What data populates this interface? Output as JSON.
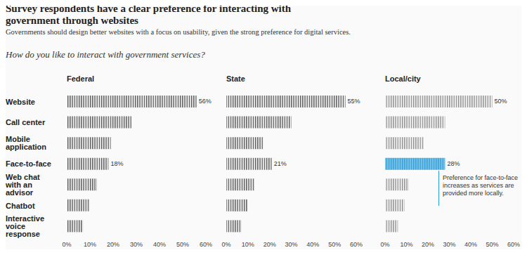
{
  "title": "Survey respondents have a clear preference for interacting with government through websites",
  "subtitle": "Governments should design better websites with a focus on usability, given the strong preference for digital services.",
  "question": "How do you like to interact with government services?",
  "chart_data": [
    {
      "type": "bar",
      "orientation": "horizontal",
      "title": "Federal",
      "categories": [
        "Website",
        "Call center",
        "Mobile application",
        "Face-to-face",
        "Web chat with an advisor",
        "Chatbot",
        "Interactive voice response"
      ],
      "values": [
        56,
        28,
        19,
        18,
        13,
        10,
        7
      ],
      "value_labels": [
        "56%",
        null,
        null,
        "18%",
        null,
        null,
        null
      ],
      "data_labels": true,
      "colors": [
        "#555555",
        "#555555",
        "#555555",
        "#555555",
        "#555555",
        "#555555",
        "#555555"
      ],
      "xlim": [
        0,
        60
      ],
      "xticks": [
        {
          "value": 0,
          "label": "0%"
        },
        {
          "value": 10,
          "label": "10%"
        },
        {
          "value": 20,
          "label": "20%"
        },
        {
          "value": 30,
          "label": "30%"
        },
        {
          "value": 40,
          "label": "40%"
        },
        {
          "value": 50,
          "label": "50%"
        },
        {
          "value": 60,
          "label": "60%"
        }
      ],
      "grid": false
    },
    {
      "type": "bar",
      "orientation": "horizontal",
      "title": "State",
      "categories": [
        "Website",
        "Call center",
        "Mobile application",
        "Face-to-face",
        "Web chat with an advisor",
        "Chatbot",
        "Interactive voice response"
      ],
      "values": [
        55,
        30,
        17,
        21,
        13,
        10,
        7
      ],
      "value_labels": [
        "55%",
        null,
        null,
        "21%",
        null,
        null,
        null
      ],
      "data_labels": true,
      "tick_labels": "x",
      "colors": [
        "#555555",
        "#555555",
        "#555555",
        "#555555",
        "#555555",
        "#555555",
        "#555555"
      ],
      "xlim": [
        0,
        60
      ],
      "xticks": [
        {
          "value": 0,
          "label": "0%"
        },
        {
          "value": 10,
          "label": "10%"
        },
        {
          "value": 20,
          "label": "20%"
        },
        {
          "value": 30,
          "label": "30%"
        },
        {
          "value": 40,
          "label": "40%"
        },
        {
          "value": 50,
          "label": "50%"
        },
        {
          "value": 60,
          "label": "60%"
        }
      ],
      "grid": false
    },
    {
      "type": "bar",
      "orientation": "horizontal",
      "title": "Local/city",
      "categories": [
        "Website",
        "Call center",
        "Mobile application",
        "Face-to-face",
        "Web chat with an advisor",
        "Chatbot",
        "Interactive voice response"
      ],
      "values": [
        50,
        28,
        18,
        28,
        11,
        9,
        6
      ],
      "value_labels": [
        "50%",
        null,
        null,
        "28%",
        null,
        null,
        null
      ],
      "data_labels": true,
      "tick_labels": "x",
      "colors": [
        "#8a8a8a",
        "#8a8a8a",
        "#8a8a8a",
        "#2b9fd9",
        "#8a8a8a",
        "#8a8a8a",
        "#8a8a8a"
      ],
      "xlim": [
        0,
        60
      ],
      "xticks": [
        {
          "value": 0,
          "label": "0%"
        },
        {
          "value": 10,
          "label": "10%"
        },
        {
          "value": 20,
          "label": "20%"
        },
        {
          "value": 30,
          "label": "30%"
        },
        {
          "value": 40,
          "label": "40%"
        },
        {
          "value": 50,
          "label": "50%"
        },
        {
          "value": 60,
          "label": "60%"
        }
      ],
      "grid": false,
      "annotation": "Preference for face-to-face increases as services are provided more locally."
    }
  ]
}
